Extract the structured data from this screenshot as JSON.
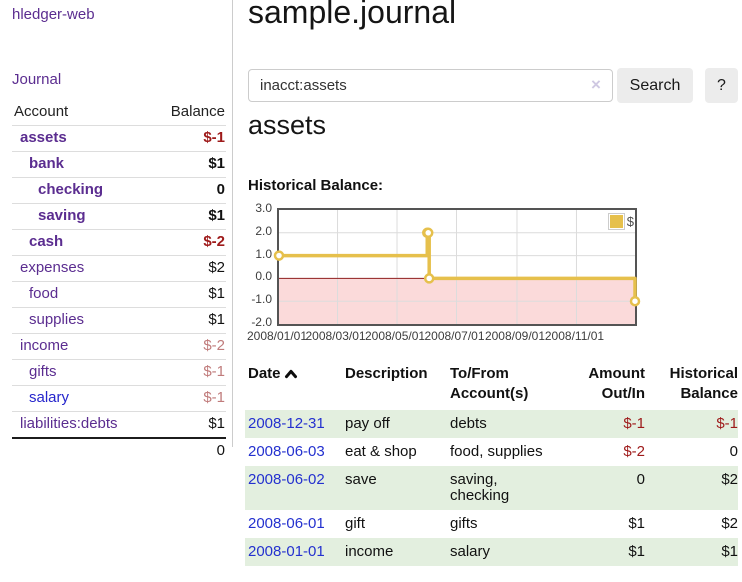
{
  "app": {
    "title": "hledger-web",
    "nav": {
      "journal": "Journal"
    }
  },
  "sidebar": {
    "accounts_table": {
      "col_account": "Account",
      "col_balance": "Balance",
      "rows": [
        {
          "name": "assets",
          "level": 1,
          "bold": true,
          "balance": "$-1"
        },
        {
          "name": "bank",
          "level": 2,
          "bold": true,
          "balance": "$1"
        },
        {
          "name": "checking",
          "level": 3,
          "bold": true,
          "balance": "0"
        },
        {
          "name": "saving",
          "level": 3,
          "bold": true,
          "balance": "$1"
        },
        {
          "name": "cash",
          "level": 2,
          "bold": true,
          "balance": "$-2"
        },
        {
          "name": "expenses",
          "level": 1,
          "bold": false,
          "balance": "$2"
        },
        {
          "name": "food",
          "level": 2,
          "bold": false,
          "balance": "$1"
        },
        {
          "name": "supplies",
          "level": 2,
          "bold": false,
          "balance": "$1"
        },
        {
          "name": "income",
          "level": 1,
          "bold": false,
          "balance": "$-2"
        },
        {
          "name": "gifts",
          "level": 2,
          "bold": false,
          "balance": "$-1"
        },
        {
          "name": "salary",
          "level": 2,
          "bold": false,
          "balance": "$-1",
          "alt_link": true
        },
        {
          "name": "liabilities:debts",
          "level": 1,
          "bold": false,
          "balance": "$1"
        }
      ],
      "total": "0"
    }
  },
  "main": {
    "title": "sample.journal",
    "search": {
      "value": "inacct:assets",
      "clear_icon": "×",
      "search_button": "Search",
      "help_button": "?"
    },
    "account_heading": "assets",
    "chart_heading": "Historical Balance:"
  },
  "chart_data": {
    "type": "line",
    "step": true,
    "title": "Historical Balance:",
    "x_range": [
      "2008-01-01",
      "2008-12-31"
    ],
    "ylim": [
      -2,
      3
    ],
    "y_ticks": [
      "3.0",
      "2.0",
      "1.0",
      "0.0",
      "-1.0",
      "-2.0"
    ],
    "x_ticks": [
      "2008/01/01",
      "2008/03/01",
      "2008/05/01",
      "2008/07/01",
      "2008/09/01",
      "2008/11/01"
    ],
    "grid": true,
    "negative_region_shaded": true,
    "legend_position": "top-right",
    "series": [
      {
        "name": "$",
        "color": "#e6c04c",
        "points": [
          {
            "x": "2008-01-01",
            "y": 1
          },
          {
            "x": "2008-06-01",
            "y": 2
          },
          {
            "x": "2008-06-02",
            "y": 2
          },
          {
            "x": "2008-06-03",
            "y": 0
          },
          {
            "x": "2008-12-31",
            "y": -1
          }
        ]
      }
    ]
  },
  "register": {
    "headers": {
      "date": "Date",
      "description": "Description",
      "accounts": "To/From Account(s)",
      "amount": "Amount Out/In",
      "balance": "Historical Balance"
    },
    "sort_icon": "chevron-up",
    "rows": [
      {
        "date": "2008-12-31",
        "description": "pay off",
        "accounts": "debts",
        "amount": "$-1",
        "balance": "$-1"
      },
      {
        "date": "2008-06-03",
        "description": "eat & shop",
        "accounts": "food, supplies",
        "amount": "$-2",
        "balance": "0"
      },
      {
        "date": "2008-06-02",
        "description": "save",
        "accounts": "saving, checking",
        "amount": "0",
        "balance": "$2"
      },
      {
        "date": "2008-06-01",
        "description": "gift",
        "accounts": "gifts",
        "amount": "$1",
        "balance": "$2"
      },
      {
        "date": "2008-01-01",
        "description": "income",
        "accounts": "salary",
        "amount": "$1",
        "balance": "$1"
      }
    ]
  },
  "colors": {
    "link_purple": "#5b2d90",
    "link_blue": "#2626cc",
    "date_link": "#2431cf",
    "neg_strong": "#9e1a1a",
    "neg_muted": "#c07b7b",
    "amount_black": "#111111",
    "row_green": "#e3efdf",
    "button_bg": "#ececec",
    "chart_line": "#e6c04c",
    "chart_negative_bg": "#fbdada",
    "chart_zero_line": "#8f1f1f",
    "chart_border": "#545454",
    "chart_grid": "#dcdcdc"
  }
}
